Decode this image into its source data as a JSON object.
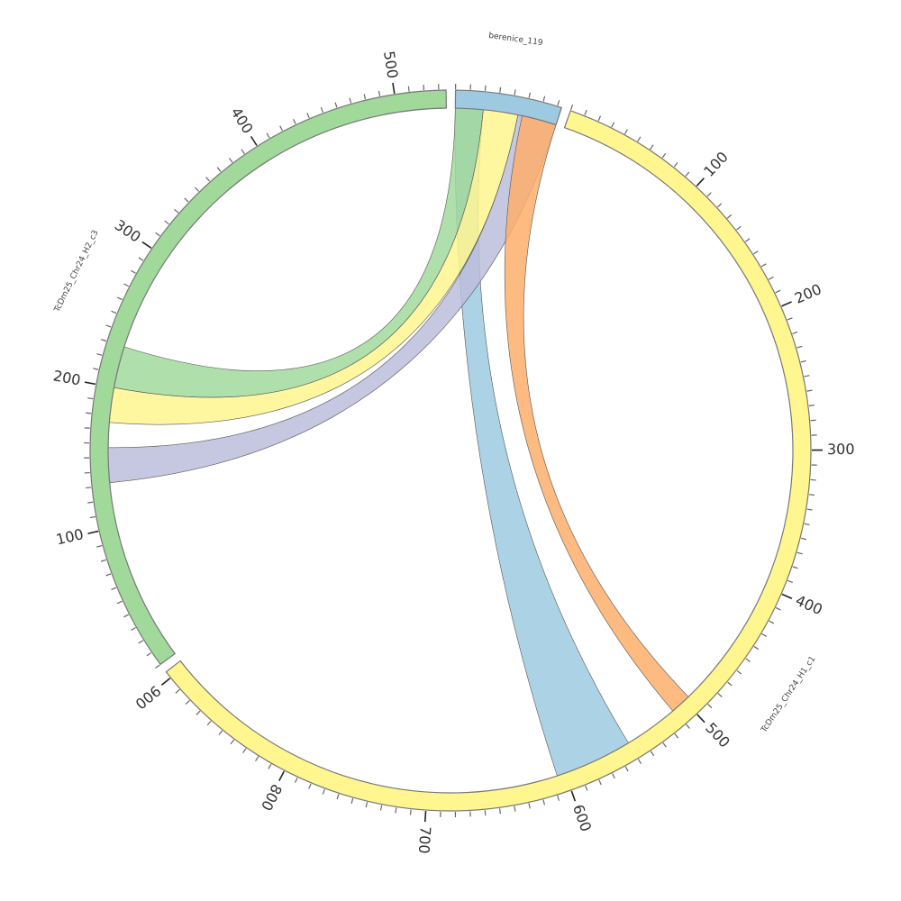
{
  "chart_data": {
    "type": "chord",
    "tick_minor": 10,
    "tick_major": 100,
    "segments": [
      {
        "name": "berenice_119",
        "length": 73,
        "color": "#9ecae1"
      },
      {
        "name": "TcDm25_Chr24_H1_c1",
        "length": 905,
        "color": "#fff68f"
      },
      {
        "name": "TcDm25_Chr24_H2_c3",
        "length": 535,
        "color": "#a1d99b"
      }
    ],
    "chords": [
      {
        "source": [
          0,
          0,
          20
        ],
        "target": [
          1,
          550,
          606
        ],
        "color": "#9ecae1"
      },
      {
        "source": [
          0,
          0,
          20
        ],
        "target": [
          2,
          200,
          230
        ],
        "color": "#a1d99b"
      },
      {
        "source": [
          0,
          20,
          45
        ],
        "target": [
          2,
          175,
          200
        ],
        "color": "#fff68f"
      },
      {
        "source": [
          0,
          45,
          73
        ],
        "target": [
          2,
          132,
          157
        ],
        "color": "#bcbddc"
      },
      {
        "source": [
          0,
          48,
          73
        ],
        "target": [
          1,
          496,
          511
        ],
        "color": "#fdae6b"
      }
    ]
  }
}
